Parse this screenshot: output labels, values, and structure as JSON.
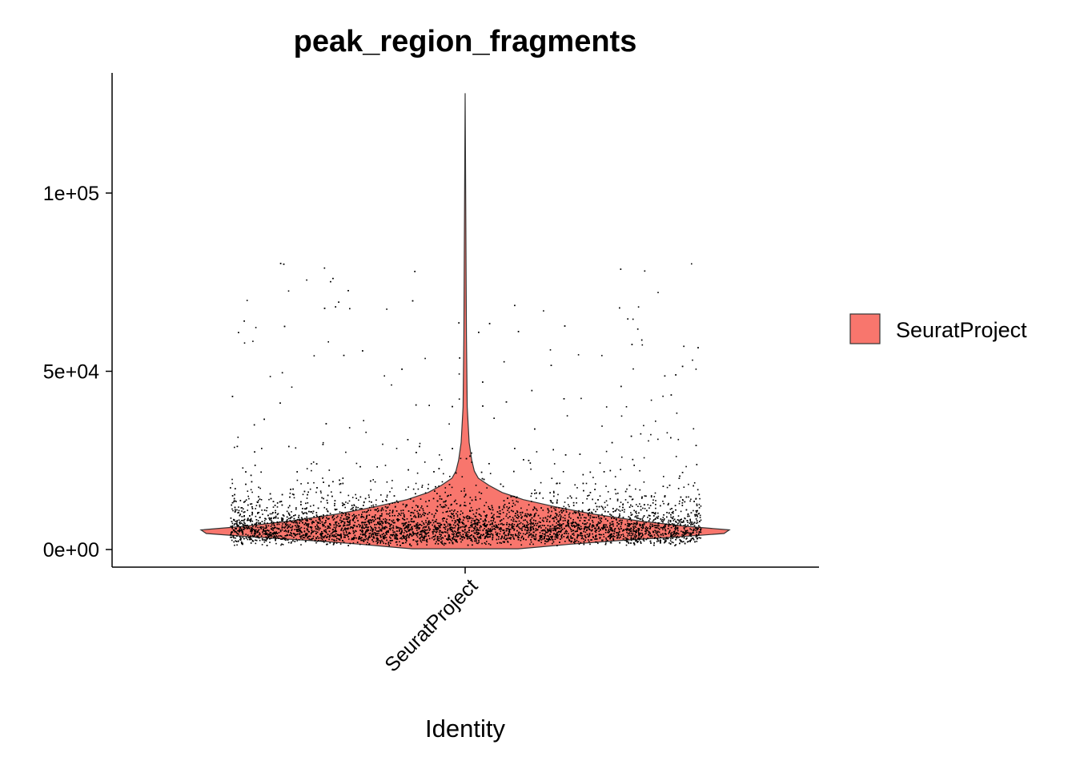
{
  "chart_data": {
    "type": "violin",
    "title": "peak_region_fragments",
    "xlabel": "Identity",
    "ylabel": "",
    "categories": [
      "SeuratProject"
    ],
    "y_ticks": [
      {
        "value": 0,
        "label": "0e+00"
      },
      {
        "value": 50000,
        "label": "5e+04"
      },
      {
        "value": 100000,
        "label": "1e+05"
      }
    ],
    "ylim": [
      -5000,
      133000
    ],
    "legend": {
      "position": "right",
      "entries": [
        {
          "name": "SeuratProject",
          "color": "#F8766D"
        }
      ]
    },
    "series": [
      {
        "name": "SeuratProject",
        "color": "#F8766D",
        "violin_profile": [
          [
            128000,
            0.0
          ],
          [
            60000,
            0.005
          ],
          [
            40000,
            0.008
          ],
          [
            30000,
            0.015
          ],
          [
            25000,
            0.025
          ],
          [
            22000,
            0.035
          ],
          [
            20000,
            0.05
          ],
          [
            18000,
            0.09
          ],
          [
            16000,
            0.14
          ],
          [
            14000,
            0.22
          ],
          [
            12000,
            0.34
          ],
          [
            10000,
            0.48
          ],
          [
            8000,
            0.66
          ],
          [
            6500,
            0.84
          ],
          [
            5500,
            1.0
          ],
          [
            4500,
            0.98
          ],
          [
            3500,
            0.8
          ],
          [
            2500,
            0.58
          ],
          [
            1500,
            0.4
          ],
          [
            700,
            0.28
          ],
          [
            200,
            0.2
          ]
        ],
        "jitter_points": {
          "n": 6000,
          "median": 6000,
          "max": 128000,
          "min": 1000
        }
      }
    ],
    "grid": false
  }
}
